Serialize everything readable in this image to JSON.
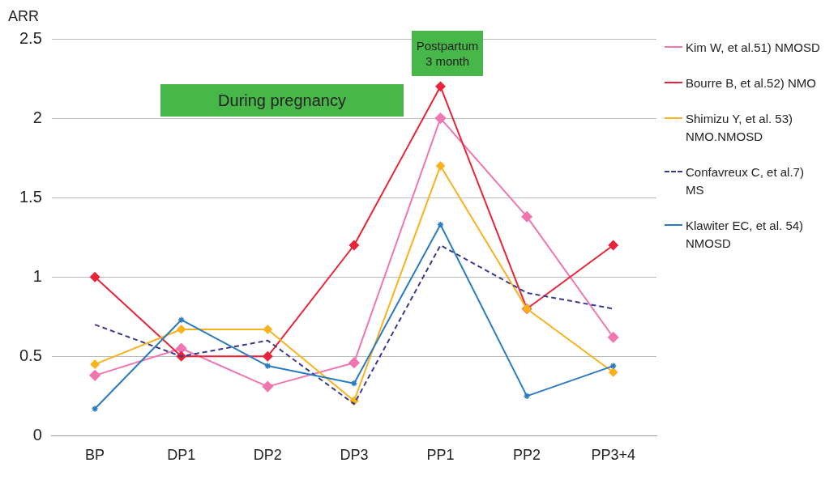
{
  "chart_data": {
    "type": "line",
    "ylabel": "ARR",
    "categories": [
      "BP",
      "DP1",
      "DP2",
      "DP3",
      "PP1",
      "PP2",
      "PP3+4"
    ],
    "series": [
      {
        "name": "Kim W, et al.51) NMOSD",
        "color": "#f075b0",
        "marker": "diamond",
        "values": [
          0.38,
          0.55,
          0.31,
          0.46,
          2.0,
          1.38,
          0.62
        ]
      },
      {
        "name": "Bourre B, et al.52) NMO",
        "color": "#e8233a",
        "marker": "diamond",
        "values": [
          1.0,
          0.5,
          0.5,
          1.2,
          2.2,
          0.8,
          1.2
        ]
      },
      {
        "name": "Shimizu Y, et al. 53) NMO.NMOSD",
        "color": "#f9b21c",
        "marker": "diamond",
        "values": [
          0.45,
          0.67,
          0.67,
          0.22,
          1.7,
          0.8,
          0.4
        ]
      },
      {
        "name": "Confavreux C, et al.7) MS",
        "color": "#3a3a8c",
        "marker": "none",
        "line_style": "dashed",
        "values": [
          0.7,
          0.5,
          0.6,
          0.2,
          1.2,
          0.9,
          0.8
        ]
      },
      {
        "name": "Klawiter EC, et al. 54) NMOSD",
        "color": "#2b7bc0",
        "marker": "cross",
        "values": [
          0.17,
          0.73,
          0.44,
          0.33,
          1.33,
          0.25,
          0.44
        ]
      }
    ],
    "ylim": [
      0,
      2.5
    ],
    "yticks": [
      0,
      0.5,
      1,
      1.5,
      2,
      2.5
    ],
    "grid": "y",
    "legend": "right",
    "annotations": [
      "During pregnancy",
      "Postpartum\n3 month"
    ]
  }
}
